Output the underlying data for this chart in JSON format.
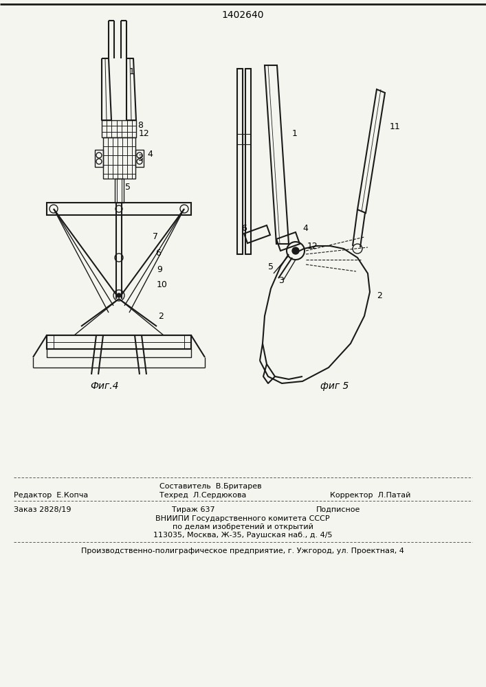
{
  "patent_number": "1402640",
  "background_color": "#f5f5f0",
  "line_color": "#1a1a1a",
  "fig_width": 7.07,
  "fig_height": 10.0,
  "dpi": 100,
  "fig4_caption": "Фиг.4",
  "fig5_caption": "фиг 5",
  "footer_line1_left": "Редактор  Е.Копча",
  "footer_line1_center1": "Составитель  В.Бритарев",
  "footer_line1_center2": "Техред  Л.Сердюкова",
  "footer_line1_right": "Корректор  Л.Патай",
  "footer_line2_left": "Заказ 2828/19",
  "footer_line2_center": "Тираж 637",
  "footer_line2_right": "Подписное",
  "footer_line3": "ВНИИПИ Государственного комитета СССР",
  "footer_line4": "по делам изобретений и открытий",
  "footer_line5": "113035, Москва, Ж-35, Раушская наб., д. 4/5",
  "footer_line6": "Производственно-полиграфическое предприятие, г. Ужгород, ул. Проектная, 4"
}
